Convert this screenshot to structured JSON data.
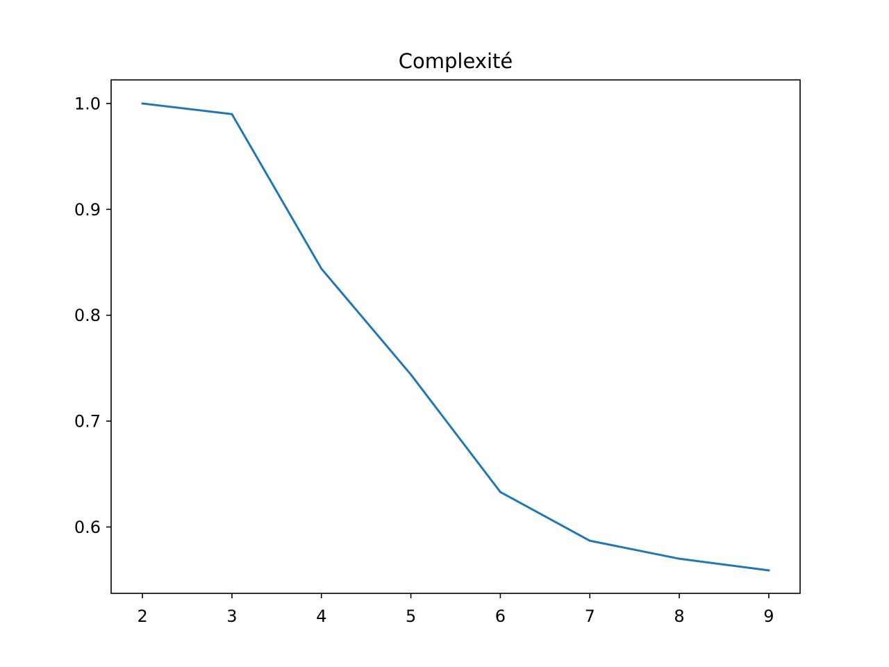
{
  "chart_data": {
    "type": "line",
    "title": "Complexité",
    "xlabel": "",
    "ylabel": "",
    "x": [
      2,
      3,
      4,
      5,
      6,
      7,
      8,
      9
    ],
    "series": [
      {
        "values": [
          1.0,
          0.99,
          0.844,
          0.744,
          0.633,
          0.587,
          0.57,
          0.559
        ],
        "color": "#1f77b4"
      }
    ],
    "xlim": [
      1.65,
      9.35
    ],
    "ylim": [
      0.5373,
      1.0223
    ],
    "xticks": [
      2,
      3,
      4,
      5,
      6,
      7,
      8,
      9
    ],
    "xtick_labels": [
      "2",
      "3",
      "4",
      "5",
      "6",
      "7",
      "8",
      "9"
    ],
    "yticks": [
      0.6,
      0.7,
      0.8,
      0.9,
      1.0
    ],
    "ytick_labels": [
      "0.6",
      "0.7",
      "0.8",
      "0.9",
      "1.0"
    ],
    "grid": false,
    "legend": false
  }
}
